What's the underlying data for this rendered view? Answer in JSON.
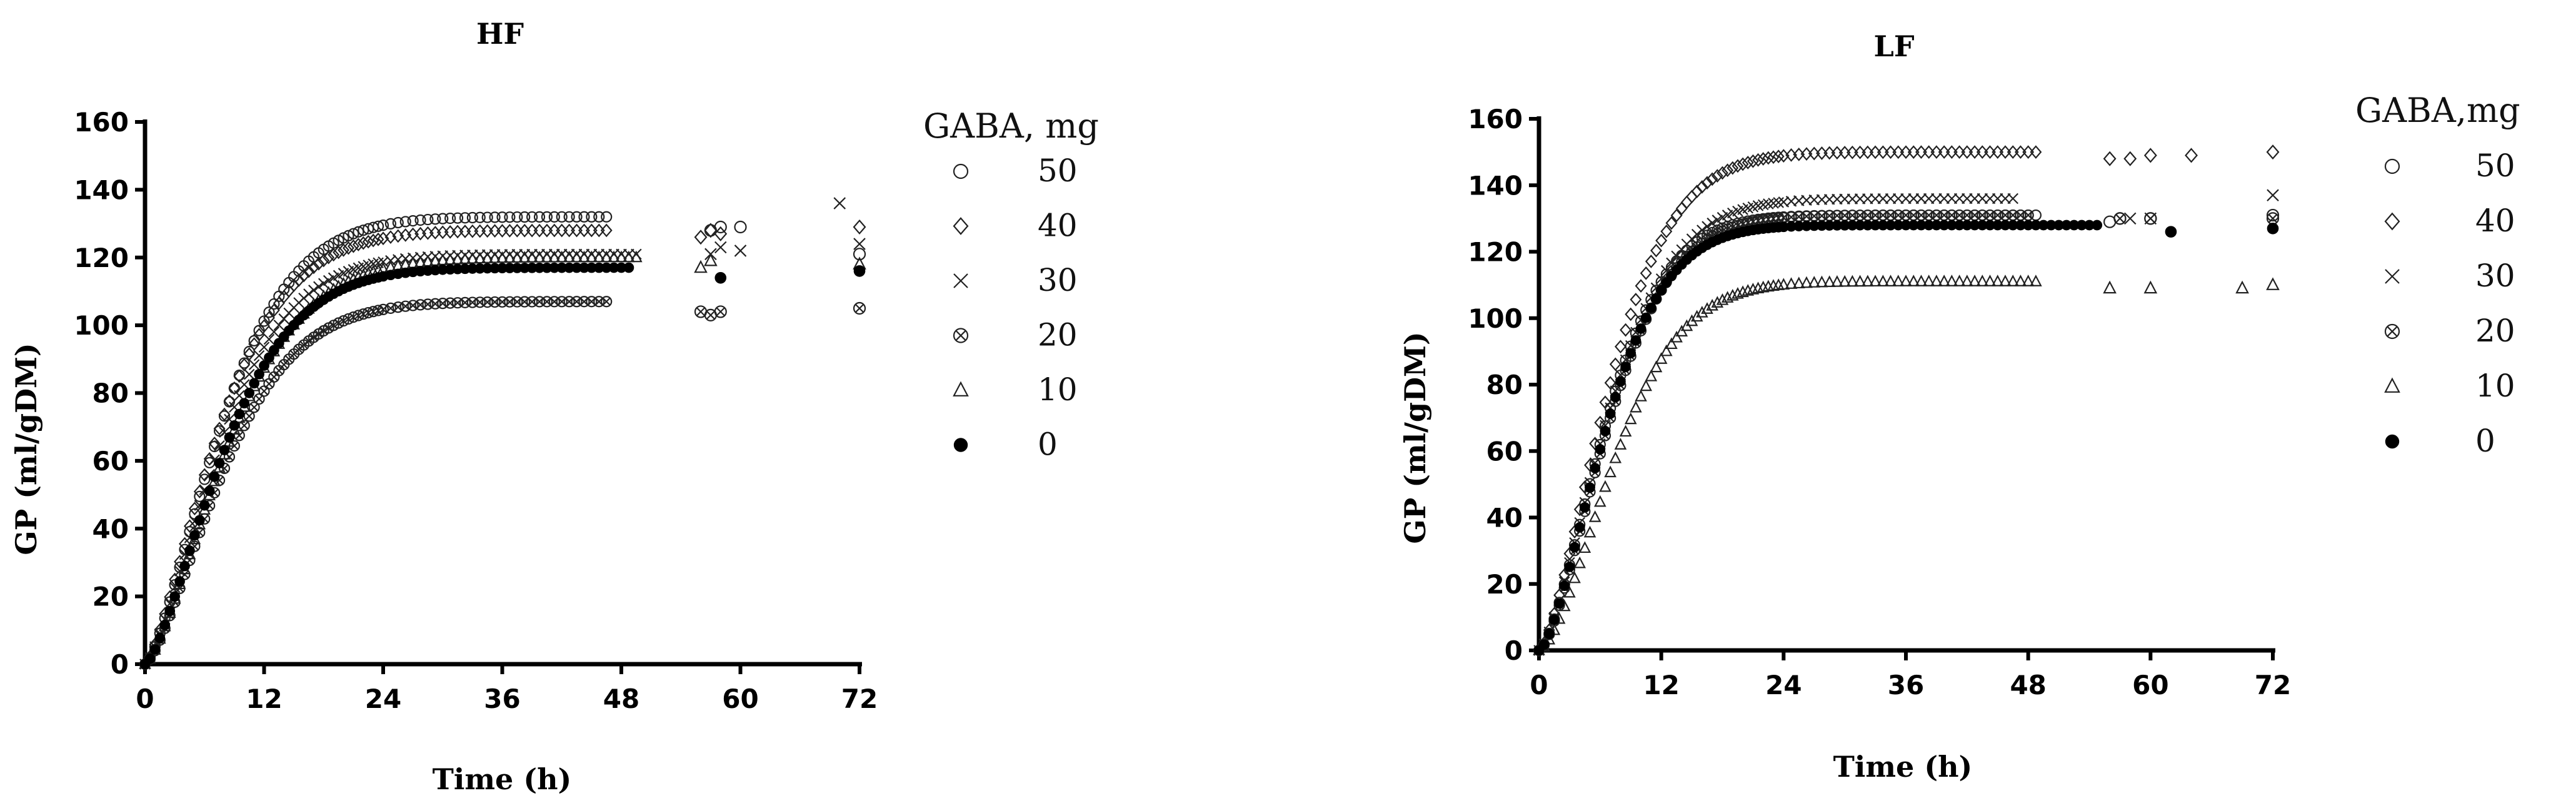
{
  "chart_data": [
    {
      "type": "scatter",
      "title": "HF",
      "xlabel": "Time (h)",
      "ylabel": "GP (ml/gDM)",
      "xlim": [
        0,
        72
      ],
      "ylim": [
        0,
        160
      ],
      "xticks": [
        "0",
        "12",
        "24",
        "36",
        "48",
        "60",
        "72"
      ],
      "yticks": [
        "0",
        "20",
        "40",
        "60",
        "80",
        "100",
        "120",
        "140",
        "160"
      ],
      "legend_title": "GABA, mg",
      "legend_position": "right",
      "grid": false,
      "series": [
        {
          "name": "50",
          "marker": "circle-open",
          "Bmax": 132,
          "k": 0.108,
          "n": 1.45,
          "dense_until": 47,
          "late_points": [
            [
              57,
              128
            ],
            [
              58,
              129
            ],
            [
              60,
              129
            ],
            [
              72,
              121
            ]
          ]
        },
        {
          "name": "40",
          "marker": "diamond-open",
          "Bmax": 128,
          "k": 0.112,
          "n": 1.4,
          "dense_until": 47,
          "late_points": [
            [
              56,
              126
            ],
            [
              57,
              128
            ],
            [
              58,
              127
            ],
            [
              72,
              129
            ]
          ]
        },
        {
          "name": "30",
          "marker": "x",
          "Bmax": 121,
          "k": 0.11,
          "n": 1.42,
          "dense_until": 50,
          "late_points": [
            [
              57,
              121
            ],
            [
              58,
              123
            ],
            [
              60,
              122
            ],
            [
              70,
              136
            ],
            [
              72,
              124
            ]
          ]
        },
        {
          "name": "20",
          "marker": "circle-cross",
          "Bmax": 107,
          "k": 0.105,
          "n": 1.45,
          "dense_until": 47,
          "late_points": [
            [
              56,
              104
            ],
            [
              57,
              103
            ],
            [
              58,
              104
            ],
            [
              72,
              105
            ]
          ]
        },
        {
          "name": "10",
          "marker": "triangle-open",
          "Bmax": 120,
          "k": 0.1,
          "n": 1.45,
          "dense_until": 50,
          "late_points": [
            [
              56,
              117
            ],
            [
              57,
              119
            ],
            [
              72,
              118
            ]
          ]
        },
        {
          "name": "0",
          "marker": "dot-filled",
          "Bmax": 117,
          "k": 0.105,
          "n": 1.45,
          "dense_until": 49,
          "late_points": [
            [
              58,
              114
            ],
            [
              72,
              116
            ]
          ]
        }
      ]
    },
    {
      "type": "scatter",
      "title": "LF",
      "xlabel": "Time (h)",
      "ylabel": "GP (ml/gDM)",
      "xlim": [
        0,
        72
      ],
      "ylim": [
        0,
        160
      ],
      "xticks": [
        "0",
        "12",
        "24",
        "36",
        "48",
        "60",
        "72"
      ],
      "yticks": [
        "0",
        "20",
        "40",
        "60",
        "80",
        "100",
        "120",
        "140",
        "160"
      ],
      "legend_title": "GABA,mg",
      "legend_position": "right",
      "grid": false,
      "series": [
        {
          "name": "50",
          "marker": "circle-open",
          "Bmax": 131,
          "k": 0.125,
          "n": 1.55,
          "dense_until": 49,
          "late_points": [
            [
              56,
              129
            ],
            [
              57,
              130
            ],
            [
              60,
              130
            ],
            [
              72,
              131
            ]
          ]
        },
        {
          "name": "40",
          "marker": "diamond-open",
          "Bmax": 150,
          "k": 0.12,
          "n": 1.5,
          "dense_until": 49,
          "late_points": [
            [
              56,
              148
            ],
            [
              58,
              148
            ],
            [
              60,
              149
            ],
            [
              64,
              149
            ],
            [
              72,
              150
            ]
          ]
        },
        {
          "name": "30",
          "marker": "x",
          "Bmax": 136,
          "k": 0.12,
          "n": 1.5,
          "dense_until": 47,
          "late_points": [
            [
              58,
              130
            ],
            [
              60,
              130
            ],
            [
              72,
              137
            ]
          ]
        },
        {
          "name": "20",
          "marker": "circle-cross",
          "Bmax": 131,
          "k": 0.12,
          "n": 1.55,
          "dense_until": 48,
          "late_points": [
            [
              57,
              130
            ],
            [
              60,
              130
            ],
            [
              72,
              130
            ]
          ]
        },
        {
          "name": "10",
          "marker": "triangle-open",
          "Bmax": 111,
          "k": 0.11,
          "n": 1.6,
          "dense_until": 49,
          "late_points": [
            [
              56,
              109
            ],
            [
              60,
              109
            ],
            [
              69,
              109
            ],
            [
              72,
              110
            ]
          ]
        },
        {
          "name": "0",
          "marker": "dot-filled",
          "Bmax": 128,
          "k": 0.125,
          "n": 1.55,
          "dense_until": 55,
          "late_points": [
            [
              62,
              126
            ],
            [
              72,
              127
            ]
          ]
        }
      ]
    }
  ]
}
